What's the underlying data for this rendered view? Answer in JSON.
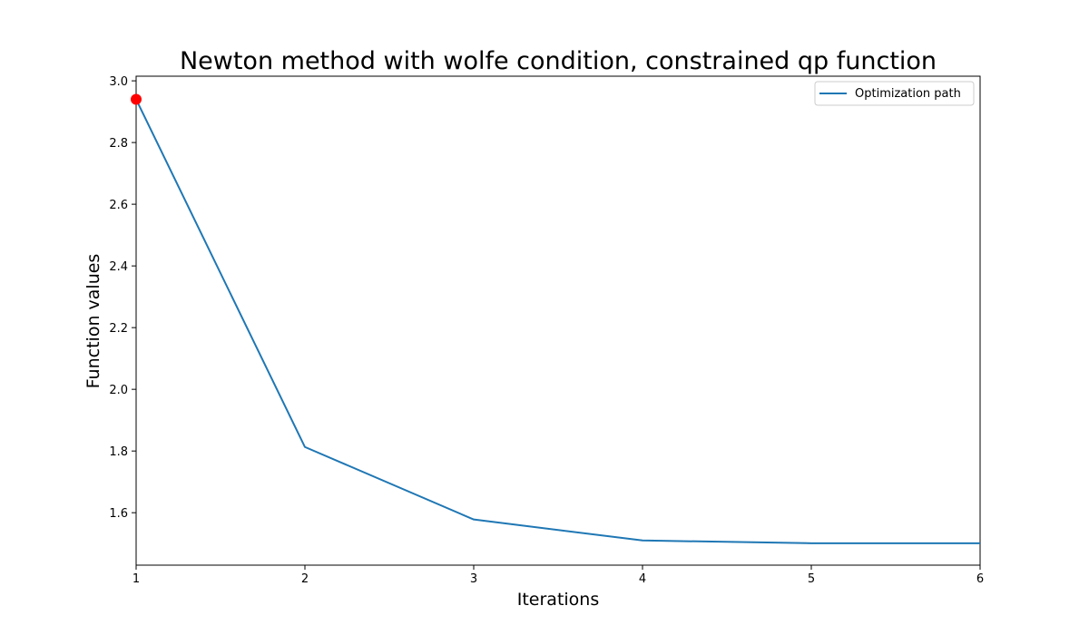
{
  "chart_data": {
    "type": "line",
    "title": "Newton method with wolfe condition, constrained qp function",
    "xlabel": "Iterations",
    "ylabel": "Function values",
    "xlim": [
      1,
      6
    ],
    "ylim": [
      1.43,
      3.015
    ],
    "xticks": [
      1,
      2,
      3,
      4,
      5,
      6
    ],
    "yticks": [
      1.6,
      1.8,
      2.0,
      2.2,
      2.4,
      2.6,
      2.8,
      3.0
    ],
    "grid": false,
    "legend_position": "top-right",
    "series": [
      {
        "name": "Optimization path",
        "color": "#1f77b4",
        "x": [
          1,
          2,
          3,
          4,
          5,
          6
        ],
        "y": [
          2.94,
          1.813,
          1.578,
          1.51,
          1.501,
          1.501
        ]
      }
    ],
    "highlight_point": {
      "x": 1,
      "y": 2.94,
      "color": "#ff0000"
    }
  }
}
